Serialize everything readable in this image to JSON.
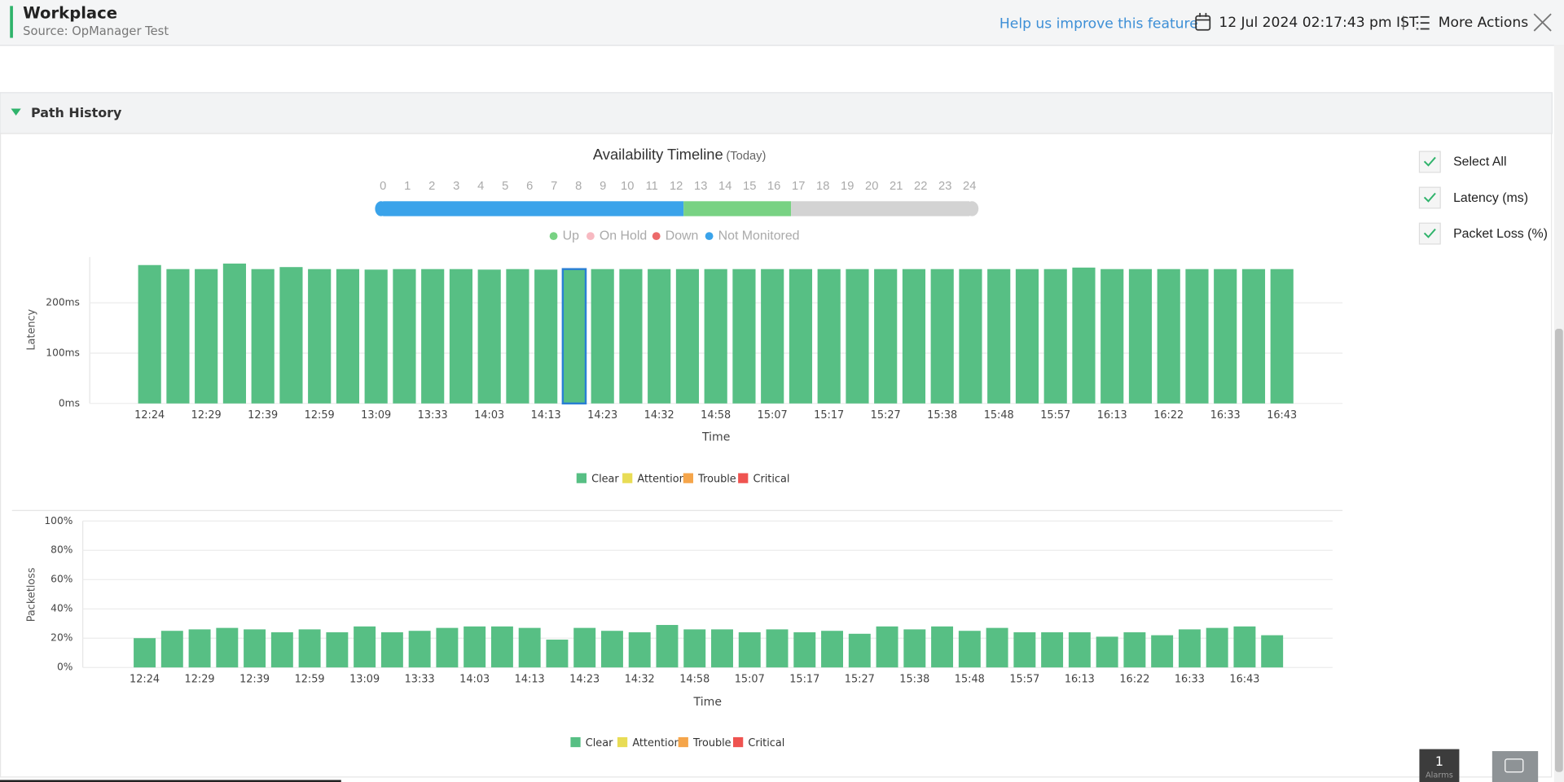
{
  "header": {
    "title": "Workplace",
    "source": "Source: OpManager Test",
    "feedback_link": "Help us improve this feature",
    "datetime": "12 Jul 2024 02:17:43 pm IST",
    "more_actions": "More Actions"
  },
  "section": {
    "title": "Path History"
  },
  "timeline": {
    "title": "Availability Timeline",
    "subtitle": "(Today)",
    "hours": [
      0,
      1,
      2,
      3,
      4,
      5,
      6,
      7,
      8,
      9,
      10,
      11,
      12,
      13,
      14,
      15,
      16,
      17,
      18,
      19,
      20,
      21,
      22,
      23,
      24
    ],
    "segments": [
      {
        "start": 0,
        "end": 12.3,
        "color": "#3aa3ea"
      },
      {
        "start": 12.3,
        "end": 16.7,
        "color": "#78d283"
      },
      {
        "start": 16.7,
        "end": 24,
        "color": "#d3d3d3"
      }
    ],
    "legend": [
      {
        "name": "Up",
        "color": "#78d283"
      },
      {
        "name": "On Hold",
        "color": "#f7b9c1"
      },
      {
        "name": "Down",
        "color": "#ec6a6a"
      },
      {
        "name": "Not Monitored",
        "color": "#3aa3ea"
      }
    ]
  },
  "options": [
    {
      "label": "Select All",
      "checked": true
    },
    {
      "label": "Latency (ms)",
      "checked": true
    },
    {
      "label": "Packet Loss (%)",
      "checked": true
    }
  ],
  "alarms": {
    "count": 1,
    "label": "Alarms"
  },
  "chart_data": [
    {
      "type": "bar",
      "x_label": "Time",
      "y_label": "Latency",
      "color": "#57bf84",
      "grid": true,
      "highlight_index": 15,
      "categories": [
        "12:24",
        null,
        "12:29",
        null,
        "12:39",
        null,
        "12:59",
        null,
        "13:09",
        null,
        "13:33",
        null,
        "14:03",
        null,
        "14:13",
        null,
        "14:23",
        null,
        "14:32",
        null,
        "14:58",
        null,
        "15:07",
        null,
        "15:17",
        null,
        "15:27",
        null,
        "15:38",
        null,
        "15:48",
        null,
        "15:57",
        null,
        "16:13",
        null,
        "16:22",
        null,
        "16:33",
        null,
        "16:43"
      ],
      "values": [
        275,
        267,
        267,
        278,
        267,
        271,
        267,
        267,
        266,
        267,
        267,
        267,
        266,
        267,
        266,
        267,
        267,
        267,
        267,
        267,
        267,
        267,
        267,
        267,
        267,
        267,
        267,
        267,
        267,
        267,
        267,
        267,
        267,
        270,
        267,
        267,
        267,
        267,
        267,
        267,
        267
      ],
      "ylim": [
        0,
        291
      ],
      "yticks": [
        {
          "value": 0,
          "label": "0ms"
        },
        {
          "value": 100,
          "label": "100ms"
        },
        {
          "value": 200,
          "label": "200ms"
        }
      ],
      "legend": [
        {
          "name": "Clear",
          "color": "#57bf84"
        },
        {
          "name": "Attention",
          "color": "#e8dc55"
        },
        {
          "name": "Trouble",
          "color": "#f5a54a"
        },
        {
          "name": "Critical",
          "color": "#ef5350"
        }
      ]
    },
    {
      "type": "bar",
      "x_label": "Time",
      "y_label": "Packetloss",
      "color": "#57bf84",
      "grid": true,
      "categories": [
        "12:24",
        null,
        "12:29",
        null,
        "12:39",
        null,
        "12:59",
        null,
        "13:09",
        null,
        "13:33",
        null,
        "14:03",
        null,
        "14:13",
        null,
        "14:23",
        null,
        "14:32",
        null,
        "14:58",
        null,
        "15:07",
        null,
        "15:17",
        null,
        "15:27",
        null,
        "15:38",
        null,
        "15:48",
        null,
        "15:57",
        null,
        "16:13",
        null,
        "16:22",
        null,
        "16:33",
        null,
        "16:43",
        null
      ],
      "values": [
        20,
        25,
        26,
        27,
        26,
        24,
        26,
        24,
        28,
        24,
        25,
        27,
        28,
        28,
        27,
        19,
        27,
        25,
        24,
        29,
        26,
        26,
        24,
        26,
        24,
        25,
        23,
        28,
        26,
        28,
        25,
        27,
        24,
        24,
        24,
        21,
        24,
        22,
        26,
        27,
        28,
        22
      ],
      "ylim": [
        0,
        100
      ],
      "yticks": [
        {
          "value": 0,
          "label": "0%"
        },
        {
          "value": 20,
          "label": "20%"
        },
        {
          "value": 40,
          "label": "40%"
        },
        {
          "value": 60,
          "label": "60%"
        },
        {
          "value": 80,
          "label": "80%"
        },
        {
          "value": 100,
          "label": "100%"
        }
      ],
      "legend": [
        {
          "name": "Clear",
          "color": "#57bf84"
        },
        {
          "name": "Attention",
          "color": "#e8dc55"
        },
        {
          "name": "Trouble",
          "color": "#f5a54a"
        },
        {
          "name": "Critical",
          "color": "#ef5350"
        }
      ]
    }
  ]
}
